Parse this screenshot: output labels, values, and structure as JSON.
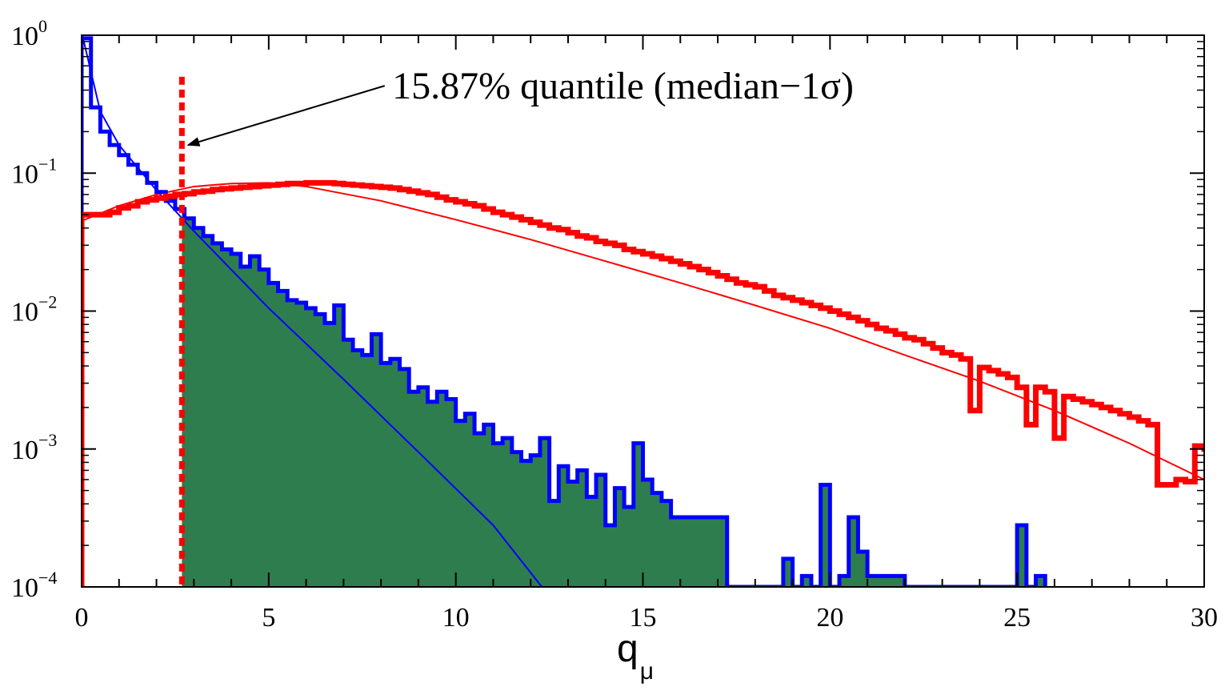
{
  "chart_data": {
    "type": "histogram",
    "title": "",
    "xlabel": "q",
    "xlabel_subscript": "μ",
    "ylabel": "",
    "xlim": [
      0,
      30
    ],
    "ylim": [
      0.0001,
      1
    ],
    "yscale": "log",
    "grid": false,
    "x_ticks": [
      {
        "value": 0,
        "label": "0"
      },
      {
        "value": 5,
        "label": "5"
      },
      {
        "value": 10,
        "label": "10"
      },
      {
        "value": 15,
        "label": "15"
      },
      {
        "value": 20,
        "label": "20"
      },
      {
        "value": 25,
        "label": "25"
      },
      {
        "value": 30,
        "label": "30"
      }
    ],
    "y_ticks": [
      {
        "value": 1,
        "base": "10",
        "exponent": "0"
      },
      {
        "value": 0.1,
        "base": "10",
        "exponent": "−1"
      },
      {
        "value": 0.01,
        "base": "10",
        "exponent": "−2"
      },
      {
        "value": 0.001,
        "base": "10",
        "exponent": "−3"
      },
      {
        "value": 0.0001,
        "base": "10",
        "exponent": "−4"
      }
    ],
    "threshold_x": 2.68,
    "annotation": {
      "text": "15.87% quantile (median−1σ)",
      "text_x": 8.3,
      "text_y": 0.43,
      "arrow_from": [
        8.1,
        0.43
      ],
      "arrow_to": [
        2.85,
        0.16
      ]
    },
    "colors": {
      "background_hist": "#0000ff",
      "signal_hist": "#ff0000",
      "fill": "#2e7d4f",
      "threshold": "#ff0000",
      "axis": "#000000"
    },
    "series": [
      {
        "key": "background",
        "bin_width": 0.25,
        "x_start": 0,
        "values": [
          0.95,
          0.3,
          0.2,
          0.16,
          0.135,
          0.115,
          0.1,
          0.085,
          0.073,
          0.063,
          0.055,
          0.047,
          0.04,
          0.035,
          0.031,
          0.028,
          0.026,
          0.021,
          0.025,
          0.02,
          0.016,
          0.014,
          0.012,
          0.0115,
          0.0105,
          0.0095,
          0.0082,
          0.011,
          0.0062,
          0.0052,
          0.0048,
          0.0068,
          0.0042,
          0.0045,
          0.0038,
          0.0026,
          0.0028,
          0.0022,
          0.0026,
          0.0023,
          0.0016,
          0.0018,
          0.0013,
          0.0015,
          0.0011,
          0.0012,
          0.00095,
          0.00082,
          0.0009,
          0.0012,
          0.00042,
          0.00075,
          0.00058,
          0.0007,
          0.00045,
          0.00065,
          0.00028,
          0.00052,
          0.00038,
          0.0011,
          0.0006,
          0.00048,
          0.00042,
          0.00032,
          0.00032,
          0.00032,
          0.00032,
          0.00032,
          0.00032,
          0.0001,
          0.0001,
          0.0001,
          0.0001,
          0.0001,
          0.0001,
          0.00016,
          0.0001,
          0.00012,
          0.0001,
          0.00055,
          0.0001,
          0.00012,
          0.00032,
          0.00018,
          0.00012,
          0.00012,
          0.00012,
          0.00012,
          0.0001,
          0.0001,
          0.0001,
          0.0001,
          0.0001,
          0.0001,
          0.0001,
          0.0001,
          0.0001,
          0.0001,
          0.0001,
          0.0001,
          0.00028,
          0.0001,
          0.00012
        ]
      },
      {
        "key": "signal",
        "bin_width": 0.25,
        "x_start": 0,
        "values": [
          0.05,
          0.05,
          0.05,
          0.052,
          0.056,
          0.058,
          0.062,
          0.064,
          0.066,
          0.068,
          0.07,
          0.071,
          0.073,
          0.074,
          0.076,
          0.077,
          0.078,
          0.079,
          0.08,
          0.081,
          0.082,
          0.083,
          0.084,
          0.084,
          0.085,
          0.085,
          0.085,
          0.084,
          0.083,
          0.082,
          0.081,
          0.08,
          0.079,
          0.078,
          0.076,
          0.074,
          0.072,
          0.07,
          0.067,
          0.064,
          0.062,
          0.06,
          0.058,
          0.055,
          0.052,
          0.05,
          0.048,
          0.046,
          0.044,
          0.042,
          0.04,
          0.039,
          0.037,
          0.035,
          0.034,
          0.032,
          0.031,
          0.03,
          0.028,
          0.027,
          0.026,
          0.025,
          0.024,
          0.023,
          0.022,
          0.021,
          0.02,
          0.019,
          0.018,
          0.017,
          0.016,
          0.0155,
          0.015,
          0.014,
          0.013,
          0.0125,
          0.012,
          0.0115,
          0.011,
          0.0105,
          0.01,
          0.0095,
          0.009,
          0.0085,
          0.008,
          0.0075,
          0.0072,
          0.0068,
          0.0064,
          0.0062,
          0.0058,
          0.0054,
          0.005,
          0.0048,
          0.0045,
          0.0042,
          0.0039,
          0.0037,
          0.0035,
          0.0033,
          0.0031,
          0.0029,
          0.0028,
          0.0026,
          0.0025,
          0.0024,
          0.0023,
          0.0022,
          0.0021,
          0.002,
          0.0019,
          0.0018,
          0.0017,
          0.0016,
          0.0015,
          0.0014,
          0.0013,
          0.0012,
          0.0011,
          0.00105,
          0.001,
          0.00095,
          0.0009,
          0.00085,
          0.0008,
          0.00075,
          0.0007,
          0.00065,
          0.0006
        ]
      }
    ],
    "signal_overrides": [
      {
        "x": 23.75,
        "value": 0.0019
      },
      {
        "x": 25.0,
        "value": 0.0028
      },
      {
        "x": 25.25,
        "value": 0.0015
      },
      {
        "x": 26.0,
        "value": 0.0012
      },
      {
        "x": 28.75,
        "value": 0.00055
      },
      {
        "x": 29.0,
        "value": 0.00055
      },
      {
        "x": 29.25,
        "value": 0.0006
      },
      {
        "x": 29.5,
        "value": 0.00058
      }
    ],
    "fit_lines": [
      {
        "key": "background_fit",
        "points": [
          [
            0.02,
            1.0
          ],
          [
            0.5,
            0.28
          ],
          [
            1,
            0.16
          ],
          [
            2,
            0.075
          ],
          [
            3,
            0.038
          ],
          [
            5,
            0.0105
          ],
          [
            7,
            0.0032
          ],
          [
            9,
            0.00095
          ],
          [
            11,
            0.00028
          ],
          [
            12.3,
            0.0001
          ]
        ]
      },
      {
        "key": "signal_fit",
        "points": [
          [
            0,
            0.045
          ],
          [
            1,
            0.058
          ],
          [
            2,
            0.07
          ],
          [
            3,
            0.08
          ],
          [
            4,
            0.084
          ],
          [
            5,
            0.085
          ],
          [
            6,
            0.08
          ],
          [
            8,
            0.063
          ],
          [
            10,
            0.046
          ],
          [
            12,
            0.033
          ],
          [
            14,
            0.023
          ],
          [
            16,
            0.016
          ],
          [
            18,
            0.011
          ],
          [
            20,
            0.0075
          ],
          [
            22,
            0.0048
          ],
          [
            24,
            0.0031
          ],
          [
            26,
            0.0019
          ],
          [
            28,
            0.0011
          ],
          [
            30,
            0.0006
          ]
        ]
      }
    ]
  }
}
